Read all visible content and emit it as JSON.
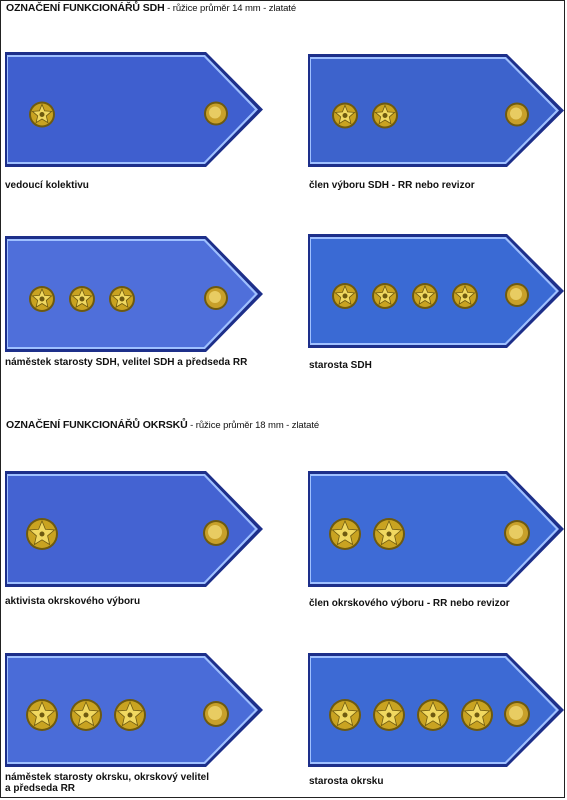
{
  "sections": [
    {
      "title": "OZNAČENÍ FUNKCIONÁŘŮ SDH",
      "subtitle": " - růžice průměr 14 mm - zlataté"
    },
    {
      "title": "OZNAČENÍ FUNKCIONÁŘŮ OKRSKŮ",
      "subtitle": " - růžice průměr 18 mm - zlataté"
    }
  ],
  "boards": [
    {
      "label": [
        "vedoucí kolektivu"
      ],
      "stars": 1,
      "color": "#3f5fcf"
    },
    {
      "label": [
        "člen výboru SDH - RR nebo revizor"
      ],
      "stars": 2,
      "color": "#3d63cc"
    },
    {
      "label": [
        "náměstek starosty SDH, velitel SDH a předseda RR"
      ],
      "stars": 3,
      "color": "#4f6fda"
    },
    {
      "label": [
        "starosta SDH"
      ],
      "stars": 4,
      "color": "#3a6ad4"
    },
    {
      "label": [
        "aktivista okrskového výboru"
      ],
      "stars": 1,
      "color": "#4463d2"
    },
    {
      "label": [
        "člen okrskového výboru - RR nebo revizor"
      ],
      "stars": 2,
      "color": "#3e6bd6"
    },
    {
      "label": [
        "náměstek starosty okrsku, okrskový velitel",
        "a předseda RR"
      ],
      "stars": 3,
      "color": "#4a6cd8"
    },
    {
      "label": [
        "starosta okrsku"
      ],
      "stars": 4,
      "color": "#3d6ad4"
    }
  ],
  "colors": {
    "edge": "#1d2f8a",
    "highlight": "#9fc0ff",
    "star_gold": "#c9a321",
    "star_dark": "#6e5a10",
    "button_gold": "#c8a02a"
  }
}
